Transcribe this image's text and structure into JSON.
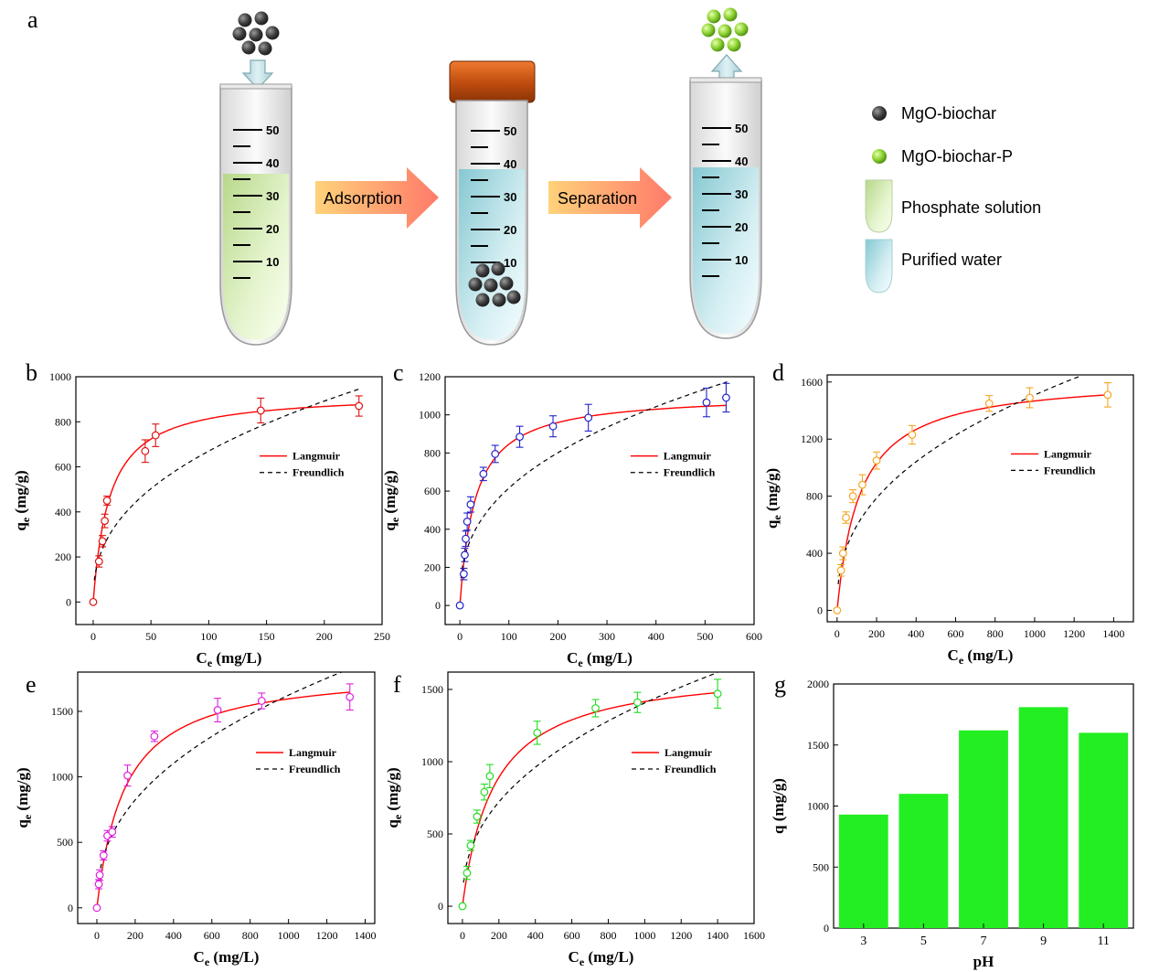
{
  "panel_a": {
    "label": "a",
    "tube_scale": [
      "50",
      "40",
      "30",
      "20",
      "10"
    ],
    "step1": "Adsorption",
    "step2": "Separation",
    "legend": [
      {
        "text": "MgO-biochar",
        "icon": "dark-sphere-icon"
      },
      {
        "text": "MgO-biochar-P",
        "icon": "green-sphere-icon"
      },
      {
        "text": "Phosphate solution",
        "icon": "green-tube-icon"
      },
      {
        "text": "Purified water",
        "icon": "blue-tube-icon"
      }
    ]
  },
  "colors": {
    "langmuir": "#ff0000",
    "freundlich": "#000000",
    "b": "#dd1111",
    "c": "#2222cc",
    "d": "#f5a623",
    "e": "#dd22dd",
    "f": "#22dd22",
    "g": "#22ee22"
  },
  "chart_data": [
    {
      "id": "b",
      "label": "b",
      "type": "scatter",
      "xlabel_main": "C",
      "xlabel_sub": "e",
      "xlabel_unit": " (mg/L)",
      "ylabel_main": "q",
      "ylabel_sub": "e",
      "ylabel_unit": " (mg/g)",
      "xlim": [
        -15,
        250
      ],
      "ylim": [
        -100,
        1000
      ],
      "xticks": [
        "0",
        "50",
        "100",
        "150",
        "200",
        "250"
      ],
      "xtick_values": [
        0,
        50,
        100,
        150,
        200,
        250
      ],
      "yticks": [
        "0",
        "200",
        "400",
        "600",
        "800",
        "1000"
      ],
      "ytick_values": [
        0,
        200,
        400,
        600,
        800,
        1000
      ],
      "points": [
        {
          "x": 0,
          "y": 0,
          "err": 0
        },
        {
          "x": 5,
          "y": 180,
          "err": 25
        },
        {
          "x": 8,
          "y": 270,
          "err": 25
        },
        {
          "x": 10,
          "y": 360,
          "err": 30
        },
        {
          "x": 12,
          "y": 450,
          "err": 20
        },
        {
          "x": 45,
          "y": 670,
          "err": 50
        },
        {
          "x": 54,
          "y": 740,
          "err": 50
        },
        {
          "x": 145,
          "y": 850,
          "err": 55
        },
        {
          "x": 230,
          "y": 870,
          "err": 45
        }
      ],
      "langmuir": {
        "qm": 930,
        "K": 0.07
      },
      "freundlich": {
        "Kf": 100,
        "n": 0.413,
        "x_end": 230
      },
      "legend": [
        "Langmuir",
        "Freundlich"
      ]
    },
    {
      "id": "c",
      "label": "c",
      "type": "scatter",
      "xlabel_main": "C",
      "xlabel_sub": "e",
      "xlabel_unit": " (mg/L)",
      "ylabel_main": "q",
      "ylabel_sub": "e",
      "ylabel_unit": " (mg/g)",
      "xlim": [
        -30,
        600
      ],
      "ylim": [
        -100,
        1200
      ],
      "xticks": [
        "0",
        "100",
        "200",
        "300",
        "400",
        "500",
        "600"
      ],
      "xtick_values": [
        0,
        100,
        200,
        300,
        400,
        500,
        600
      ],
      "yticks": [
        "0",
        "200",
        "400",
        "600",
        "800",
        "1000",
        "1200"
      ],
      "ytick_values": [
        0,
        200,
        400,
        600,
        800,
        1000,
        1200
      ],
      "points": [
        {
          "x": 0,
          "y": 0,
          "err": 0
        },
        {
          "x": 8,
          "y": 165,
          "err": 30
        },
        {
          "x": 10,
          "y": 265,
          "err": 35
        },
        {
          "x": 12,
          "y": 350,
          "err": 40
        },
        {
          "x": 15,
          "y": 440,
          "err": 45
        },
        {
          "x": 22,
          "y": 530,
          "err": 40
        },
        {
          "x": 48,
          "y": 690,
          "err": 35
        },
        {
          "x": 72,
          "y": 795,
          "err": 45
        },
        {
          "x": 122,
          "y": 885,
          "err": 55
        },
        {
          "x": 190,
          "y": 940,
          "err": 55
        },
        {
          "x": 262,
          "y": 985,
          "err": 70
        },
        {
          "x": 503,
          "y": 1065,
          "err": 75
        },
        {
          "x": 543,
          "y": 1090,
          "err": 75
        }
      ],
      "langmuir": {
        "qm": 1110,
        "K": 0.032
      },
      "freundlich": {
        "Kf": 107,
        "n": 0.38,
        "x_end": 545
      },
      "legend": [
        "Langmuir",
        "Freundlich"
      ]
    },
    {
      "id": "d",
      "label": "d",
      "type": "scatter",
      "xlabel_main": "C",
      "xlabel_sub": "e",
      "xlabel_unit": " (mg/L)",
      "ylabel_main": "q",
      "ylabel_sub": "e",
      "ylabel_unit": " (mg/g)",
      "xlim": [
        -50,
        1500
      ],
      "ylim": [
        -80,
        1650
      ],
      "xticks": [
        "0",
        "200",
        "400",
        "600",
        "800",
        "1000",
        "1200",
        "1400"
      ],
      "xtick_values": [
        0,
        200,
        400,
        600,
        800,
        1000,
        1200,
        1400
      ],
      "yticks": [
        "0",
        "400",
        "800",
        "1200",
        "1600"
      ],
      "ytick_values": [
        0,
        400,
        800,
        1200,
        1600
      ],
      "points": [
        {
          "x": 0,
          "y": 0,
          "err": 0
        },
        {
          "x": 20,
          "y": 280,
          "err": 40
        },
        {
          "x": 30,
          "y": 400,
          "err": 45
        },
        {
          "x": 45,
          "y": 650,
          "err": 40
        },
        {
          "x": 80,
          "y": 800,
          "err": 45
        },
        {
          "x": 128,
          "y": 880,
          "err": 70
        },
        {
          "x": 200,
          "y": 1050,
          "err": 60
        },
        {
          "x": 380,
          "y": 1230,
          "err": 65
        },
        {
          "x": 770,
          "y": 1450,
          "err": 55
        },
        {
          "x": 975,
          "y": 1490,
          "err": 70
        },
        {
          "x": 1370,
          "y": 1510,
          "err": 85
        }
      ],
      "langmuir": {
        "qm": 1640,
        "K": 0.0085
      },
      "freundlich": {
        "Kf": 92,
        "n": 0.405,
        "x_end": 1230
      },
      "legend": [
        "Langmuir",
        "Freundlich"
      ]
    },
    {
      "id": "e",
      "label": "e",
      "type": "scatter",
      "xlabel_main": "C",
      "xlabel_sub": "e",
      "xlabel_unit": " (mg/L)",
      "ylabel_main": "q",
      "ylabel_sub": "e",
      "ylabel_unit": " (mg/g)",
      "xlim": [
        -100,
        1450
      ],
      "ylim": [
        -120,
        1800
      ],
      "xticks": [
        "0",
        "200",
        "400",
        "600",
        "800",
        "1000",
        "1200",
        "1400"
      ],
      "xtick_values": [
        0,
        200,
        400,
        600,
        800,
        1000,
        1200,
        1400
      ],
      "yticks": [
        "0",
        "500",
        "1000",
        "1500"
      ],
      "ytick_values": [
        0,
        500,
        1000,
        1500
      ],
      "points": [
        {
          "x": 0,
          "y": 0,
          "err": 0
        },
        {
          "x": 10,
          "y": 180,
          "err": 35
        },
        {
          "x": 15,
          "y": 250,
          "err": 40
        },
        {
          "x": 35,
          "y": 400,
          "err": 35
        },
        {
          "x": 55,
          "y": 550,
          "err": 40
        },
        {
          "x": 80,
          "y": 580,
          "err": 40
        },
        {
          "x": 160,
          "y": 1010,
          "err": 80
        },
        {
          "x": 300,
          "y": 1310,
          "err": 40
        },
        {
          "x": 630,
          "y": 1510,
          "err": 90
        },
        {
          "x": 860,
          "y": 1580,
          "err": 60
        },
        {
          "x": 1320,
          "y": 1610,
          "err": 100
        }
      ],
      "langmuir": {
        "qm": 1830,
        "K": 0.0068
      },
      "freundlich": {
        "Kf": 88,
        "n": 0.422,
        "x_end": 1290
      },
      "legend": [
        "Langmuir",
        "Freundlich"
      ]
    },
    {
      "id": "f",
      "label": "f",
      "type": "scatter",
      "xlabel_main": "C",
      "xlabel_sub": "e",
      "xlabel_unit": " (mg/L)",
      "ylabel_main": "q",
      "ylabel_sub": "e",
      "ylabel_unit": " (mg/g)",
      "xlim": [
        -80,
        1600
      ],
      "ylim": [
        -120,
        1620
      ],
      "xticks": [
        "0",
        "200",
        "400",
        "600",
        "800",
        "1000",
        "1200",
        "1400",
        "1600"
      ],
      "xtick_values": [
        0,
        200,
        400,
        600,
        800,
        1000,
        1200,
        1400,
        1600
      ],
      "yticks": [
        "0",
        "500",
        "1000",
        "1500"
      ],
      "ytick_values": [
        0,
        500,
        1000,
        1500
      ],
      "points": [
        {
          "x": 0,
          "y": 0,
          "err": 0
        },
        {
          "x": 25,
          "y": 230,
          "err": 45
        },
        {
          "x": 45,
          "y": 420,
          "err": 35
        },
        {
          "x": 80,
          "y": 620,
          "err": 45
        },
        {
          "x": 120,
          "y": 790,
          "err": 55
        },
        {
          "x": 150,
          "y": 900,
          "err": 80
        },
        {
          "x": 410,
          "y": 1200,
          "err": 80
        },
        {
          "x": 730,
          "y": 1370,
          "err": 60
        },
        {
          "x": 960,
          "y": 1410,
          "err": 70
        },
        {
          "x": 1400,
          "y": 1470,
          "err": 100
        }
      ],
      "langmuir": {
        "qm": 1660,
        "K": 0.0058
      },
      "freundlich": {
        "Kf": 80,
        "n": 0.415,
        "x_end": 1400
      },
      "legend": [
        "Langmuir",
        "Freundlich"
      ]
    },
    {
      "id": "g",
      "label": "g",
      "type": "bar",
      "xlabel_main": "pH",
      "xlabel_sub": "",
      "xlabel_unit": "",
      "ylabel_main": "q",
      "ylabel_sub": "",
      "ylabel_unit": " (mg/g)",
      "ylim": [
        0,
        2000
      ],
      "categories": [
        "3",
        "5",
        "7",
        "9",
        "11"
      ],
      "values": [
        930,
        1100,
        1620,
        1810,
        1600
      ],
      "yticks": [
        "0",
        "500",
        "1000",
        "1500",
        "2000"
      ],
      "ytick_values": [
        0,
        500,
        1000,
        1500,
        2000
      ]
    }
  ]
}
